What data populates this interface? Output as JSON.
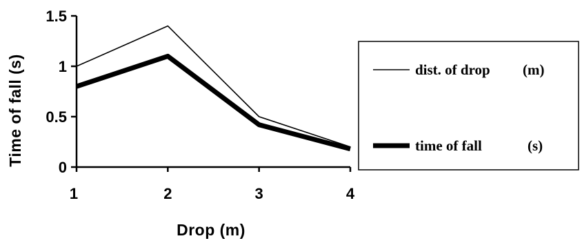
{
  "chart_data": {
    "type": "line",
    "x": [
      1,
      2,
      3,
      4
    ],
    "x_tick_labels": [
      "1",
      "2",
      "3",
      "4"
    ],
    "y_ticks": [
      0,
      0.5,
      1,
      1.5
    ],
    "y_tick_labels": [
      "0",
      "0.5",
      "1",
      "1.5"
    ],
    "ylim": [
      0,
      1.5
    ],
    "xlabel": "Drop  (m)",
    "ylabel": "Time  of  fall  (s)",
    "grid": false,
    "legend_position": "right",
    "series": [
      {
        "name": "dist. of drop",
        "unit": "(m)",
        "values": [
          1.0,
          1.4,
          0.5,
          0.2
        ],
        "style": "thin"
      },
      {
        "name": "time of fall",
        "unit": "(s)",
        "values": [
          0.8,
          1.1,
          0.42,
          0.18
        ],
        "style": "thick"
      }
    ],
    "colors": {
      "line": "#000000",
      "background": "#ffffff"
    }
  }
}
